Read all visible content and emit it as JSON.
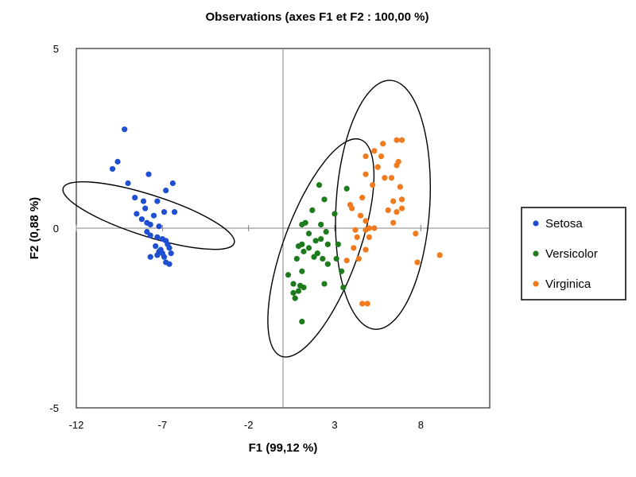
{
  "colors": {
    "Setosa": "#1f4fd1",
    "Versicolor": "#1d7a1d",
    "Virginica": "#f07a1e",
    "frame": "#000000",
    "grid": "#808080"
  },
  "chart_data": {
    "type": "scatter",
    "title": "Observations (axes F1 et F2 : 100,00 %)",
    "xlabel": "F1 (99,12 %)",
    "ylabel": "F2 (0,88 %)",
    "xlim": [
      -12,
      12
    ],
    "ylim": [
      -5,
      5
    ],
    "xticks": [
      -12,
      -7,
      -2,
      3,
      8
    ],
    "yticks": [
      -5,
      0,
      5
    ],
    "legend_position": "right",
    "series": [
      {
        "name": "Setosa",
        "points": [
          [
            -9.2,
            2.75
          ],
          [
            -9.6,
            1.85
          ],
          [
            -9.9,
            1.65
          ],
          [
            -9.0,
            1.25
          ],
          [
            -8.6,
            0.85
          ],
          [
            -8.1,
            0.75
          ],
          [
            -7.8,
            1.5
          ],
          [
            -6.8,
            1.05
          ],
          [
            -6.4,
            1.25
          ],
          [
            -7.3,
            0.75
          ],
          [
            -8.5,
            0.4
          ],
          [
            -8.0,
            0.55
          ],
          [
            -7.5,
            0.35
          ],
          [
            -6.9,
            0.45
          ],
          [
            -6.3,
            0.45
          ],
          [
            -8.2,
            0.25
          ],
          [
            -7.9,
            0.15
          ],
          [
            -7.7,
            0.1
          ],
          [
            -7.2,
            0.05
          ],
          [
            -7.9,
            -0.1
          ],
          [
            -7.7,
            -0.2
          ],
          [
            -7.3,
            -0.25
          ],
          [
            -7.0,
            -0.3
          ],
          [
            -6.8,
            -0.35
          ],
          [
            -7.4,
            -0.5
          ],
          [
            -6.7,
            -0.45
          ],
          [
            -7.1,
            -0.6
          ],
          [
            -6.6,
            -0.55
          ],
          [
            -7.0,
            -0.7
          ],
          [
            -7.3,
            -0.75
          ],
          [
            -6.9,
            -0.8
          ],
          [
            -6.5,
            -0.7
          ],
          [
            -7.7,
            -0.8
          ],
          [
            -7.2,
            -0.65
          ],
          [
            -6.8,
            -0.95
          ],
          [
            -6.6,
            -1.0
          ]
        ]
      },
      {
        "name": "Versicolor",
        "points": [
          [
            2.1,
            1.2
          ],
          [
            3.7,
            1.1
          ],
          [
            2.4,
            0.8
          ],
          [
            1.7,
            0.5
          ],
          [
            3.0,
            0.4
          ],
          [
            1.3,
            0.15
          ],
          [
            1.1,
            0.1
          ],
          [
            2.2,
            0.1
          ],
          [
            1.5,
            -0.15
          ],
          [
            2.5,
            -0.1
          ],
          [
            2.2,
            -0.3
          ],
          [
            1.9,
            -0.35
          ],
          [
            1.1,
            -0.45
          ],
          [
            0.9,
            -0.5
          ],
          [
            2.6,
            -0.45
          ],
          [
            3.2,
            -0.45
          ],
          [
            1.5,
            -0.55
          ],
          [
            1.2,
            -0.65
          ],
          [
            2.0,
            -0.7
          ],
          [
            0.8,
            -0.85
          ],
          [
            2.3,
            -0.85
          ],
          [
            1.8,
            -0.8
          ],
          [
            3.1,
            -0.85
          ],
          [
            2.6,
            -1.0
          ],
          [
            1.1,
            -1.2
          ],
          [
            0.3,
            -1.3
          ],
          [
            3.4,
            -1.2
          ],
          [
            0.6,
            -1.55
          ],
          [
            1.0,
            -1.6
          ],
          [
            1.2,
            -1.65
          ],
          [
            2.4,
            -1.55
          ],
          [
            0.9,
            -1.75
          ],
          [
            0.6,
            -1.8
          ],
          [
            3.5,
            -1.65
          ],
          [
            0.7,
            -1.95
          ],
          [
            1.1,
            -2.6
          ]
        ]
      },
      {
        "name": "Virginica",
        "points": [
          [
            6.6,
            2.45
          ],
          [
            6.9,
            2.45
          ],
          [
            5.8,
            2.35
          ],
          [
            5.3,
            2.15
          ],
          [
            5.7,
            2.0
          ],
          [
            4.8,
            2.0
          ],
          [
            6.7,
            1.85
          ],
          [
            6.6,
            1.75
          ],
          [
            5.5,
            1.7
          ],
          [
            4.8,
            1.5
          ],
          [
            5.9,
            1.4
          ],
          [
            6.3,
            1.4
          ],
          [
            6.8,
            1.15
          ],
          [
            5.2,
            1.2
          ],
          [
            6.9,
            0.8
          ],
          [
            4.6,
            0.85
          ],
          [
            6.4,
            0.75
          ],
          [
            3.9,
            0.65
          ],
          [
            4.0,
            0.55
          ],
          [
            6.9,
            0.55
          ],
          [
            4.5,
            0.35
          ],
          [
            6.1,
            0.5
          ],
          [
            6.6,
            0.45
          ],
          [
            4.8,
            0.2
          ],
          [
            6.4,
            0.15
          ],
          [
            4.2,
            -0.05
          ],
          [
            4.8,
            -0.05
          ],
          [
            5.0,
            0.0
          ],
          [
            5.3,
            0.0
          ],
          [
            7.7,
            -0.15
          ],
          [
            4.3,
            -0.25
          ],
          [
            5.0,
            -0.25
          ],
          [
            4.1,
            -0.55
          ],
          [
            4.8,
            -0.6
          ],
          [
            4.4,
            -0.85
          ],
          [
            3.7,
            -0.9
          ],
          [
            9.1,
            -0.75
          ],
          [
            7.8,
            -0.95
          ],
          [
            4.6,
            -2.1
          ],
          [
            4.9,
            -2.1
          ]
        ]
      }
    ],
    "ellipses": [
      {
        "series": "Setosa",
        "cx": -7.8,
        "cy": 0.35,
        "rx": 1.2,
        "ry": 2.5,
        "angle": -72.2
      },
      {
        "series": "Versicolor",
        "cx": 2.2,
        "cy": -0.55,
        "rx": 2.18,
        "ry": 3.21,
        "angle": 20.1
      },
      {
        "series": "Virginica",
        "cx": 5.8,
        "cy": 0.65,
        "rx": 2.72,
        "ry": 3.47,
        "angle": 3.6
      }
    ]
  }
}
